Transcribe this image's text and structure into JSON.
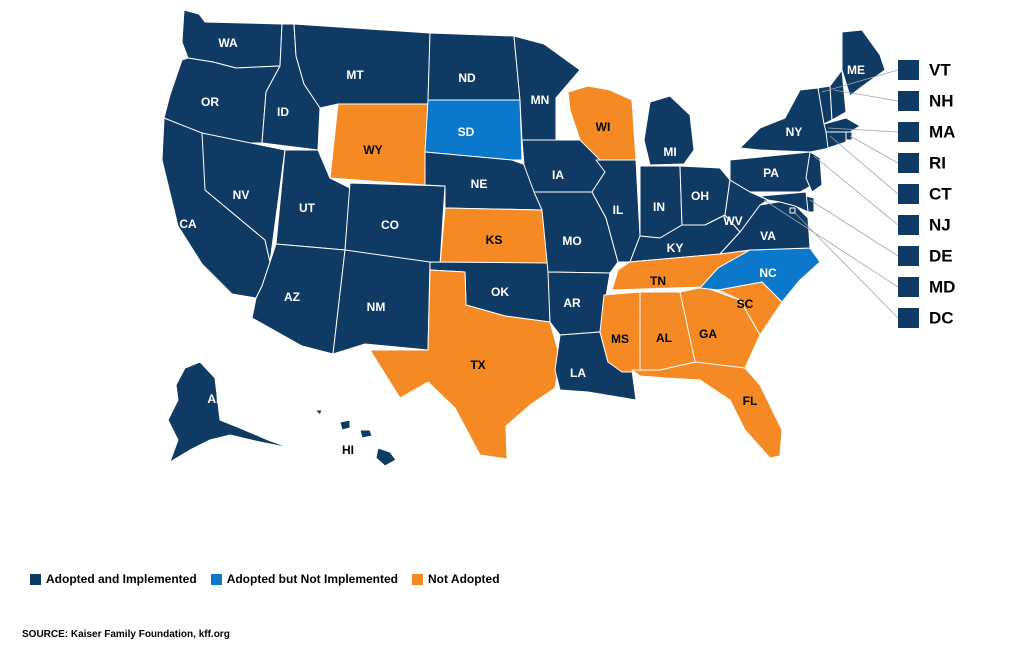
{
  "colors": {
    "adopted_implemented": "#0f3a63",
    "adopted_not_implemented": "#0b78cc",
    "not_adopted": "#f58a24"
  },
  "legend": [
    {
      "label": "Adopted and Implemented",
      "status": "adopted_implemented"
    },
    {
      "label": "Adopted but Not Implemented",
      "status": "adopted_not_implemented"
    },
    {
      "label": "Not Adopted",
      "status": "not_adopted"
    }
  ],
  "source": "SOURCE: Kaiser Family Foundation, kff.org",
  "states": [
    {
      "code": "WA",
      "status": "adopted_implemented"
    },
    {
      "code": "OR",
      "status": "adopted_implemented"
    },
    {
      "code": "CA",
      "status": "adopted_implemented"
    },
    {
      "code": "ID",
      "status": "adopted_implemented"
    },
    {
      "code": "NV",
      "status": "adopted_implemented"
    },
    {
      "code": "MT",
      "status": "adopted_implemented"
    },
    {
      "code": "WY",
      "status": "not_adopted"
    },
    {
      "code": "UT",
      "status": "adopted_implemented"
    },
    {
      "code": "AZ",
      "status": "adopted_implemented"
    },
    {
      "code": "CO",
      "status": "adopted_implemented"
    },
    {
      "code": "NM",
      "status": "adopted_implemented"
    },
    {
      "code": "ND",
      "status": "adopted_implemented"
    },
    {
      "code": "SD",
      "status": "adopted_not_implemented"
    },
    {
      "code": "NE",
      "status": "adopted_implemented"
    },
    {
      "code": "KS",
      "status": "not_adopted"
    },
    {
      "code": "OK",
      "status": "adopted_implemented"
    },
    {
      "code": "TX",
      "status": "not_adopted"
    },
    {
      "code": "MN",
      "status": "adopted_implemented"
    },
    {
      "code": "IA",
      "status": "adopted_implemented"
    },
    {
      "code": "MO",
      "status": "adopted_implemented"
    },
    {
      "code": "AR",
      "status": "adopted_implemented"
    },
    {
      "code": "LA",
      "status": "adopted_implemented"
    },
    {
      "code": "WI",
      "status": "not_adopted"
    },
    {
      "code": "IL",
      "status": "adopted_implemented"
    },
    {
      "code": "MI",
      "status": "adopted_implemented"
    },
    {
      "code": "IN",
      "status": "adopted_implemented"
    },
    {
      "code": "OH",
      "status": "adopted_implemented"
    },
    {
      "code": "KY",
      "status": "adopted_implemented"
    },
    {
      "code": "TN",
      "status": "not_adopted"
    },
    {
      "code": "MS",
      "status": "not_adopted"
    },
    {
      "code": "AL",
      "status": "not_adopted"
    },
    {
      "code": "GA",
      "status": "not_adopted"
    },
    {
      "code": "FL",
      "status": "not_adopted"
    },
    {
      "code": "SC",
      "status": "not_adopted"
    },
    {
      "code": "NC",
      "status": "adopted_not_implemented"
    },
    {
      "code": "VA",
      "status": "adopted_implemented"
    },
    {
      "code": "WV",
      "status": "adopted_implemented"
    },
    {
      "code": "PA",
      "status": "adopted_implemented"
    },
    {
      "code": "NY",
      "status": "adopted_implemented"
    },
    {
      "code": "ME",
      "status": "adopted_implemented"
    },
    {
      "code": "AK",
      "status": "adopted_implemented"
    },
    {
      "code": "HI",
      "status": "adopted_implemented"
    }
  ],
  "small_states": [
    {
      "code": "VT",
      "status": "adopted_implemented"
    },
    {
      "code": "NH",
      "status": "adopted_implemented"
    },
    {
      "code": "MA",
      "status": "adopted_implemented"
    },
    {
      "code": "RI",
      "status": "adopted_implemented"
    },
    {
      "code": "CT",
      "status": "adopted_implemented"
    },
    {
      "code": "NJ",
      "status": "adopted_implemented"
    },
    {
      "code": "DE",
      "status": "adopted_implemented"
    },
    {
      "code": "MD",
      "status": "adopted_implemented"
    },
    {
      "code": "DC",
      "status": "adopted_implemented"
    }
  ]
}
